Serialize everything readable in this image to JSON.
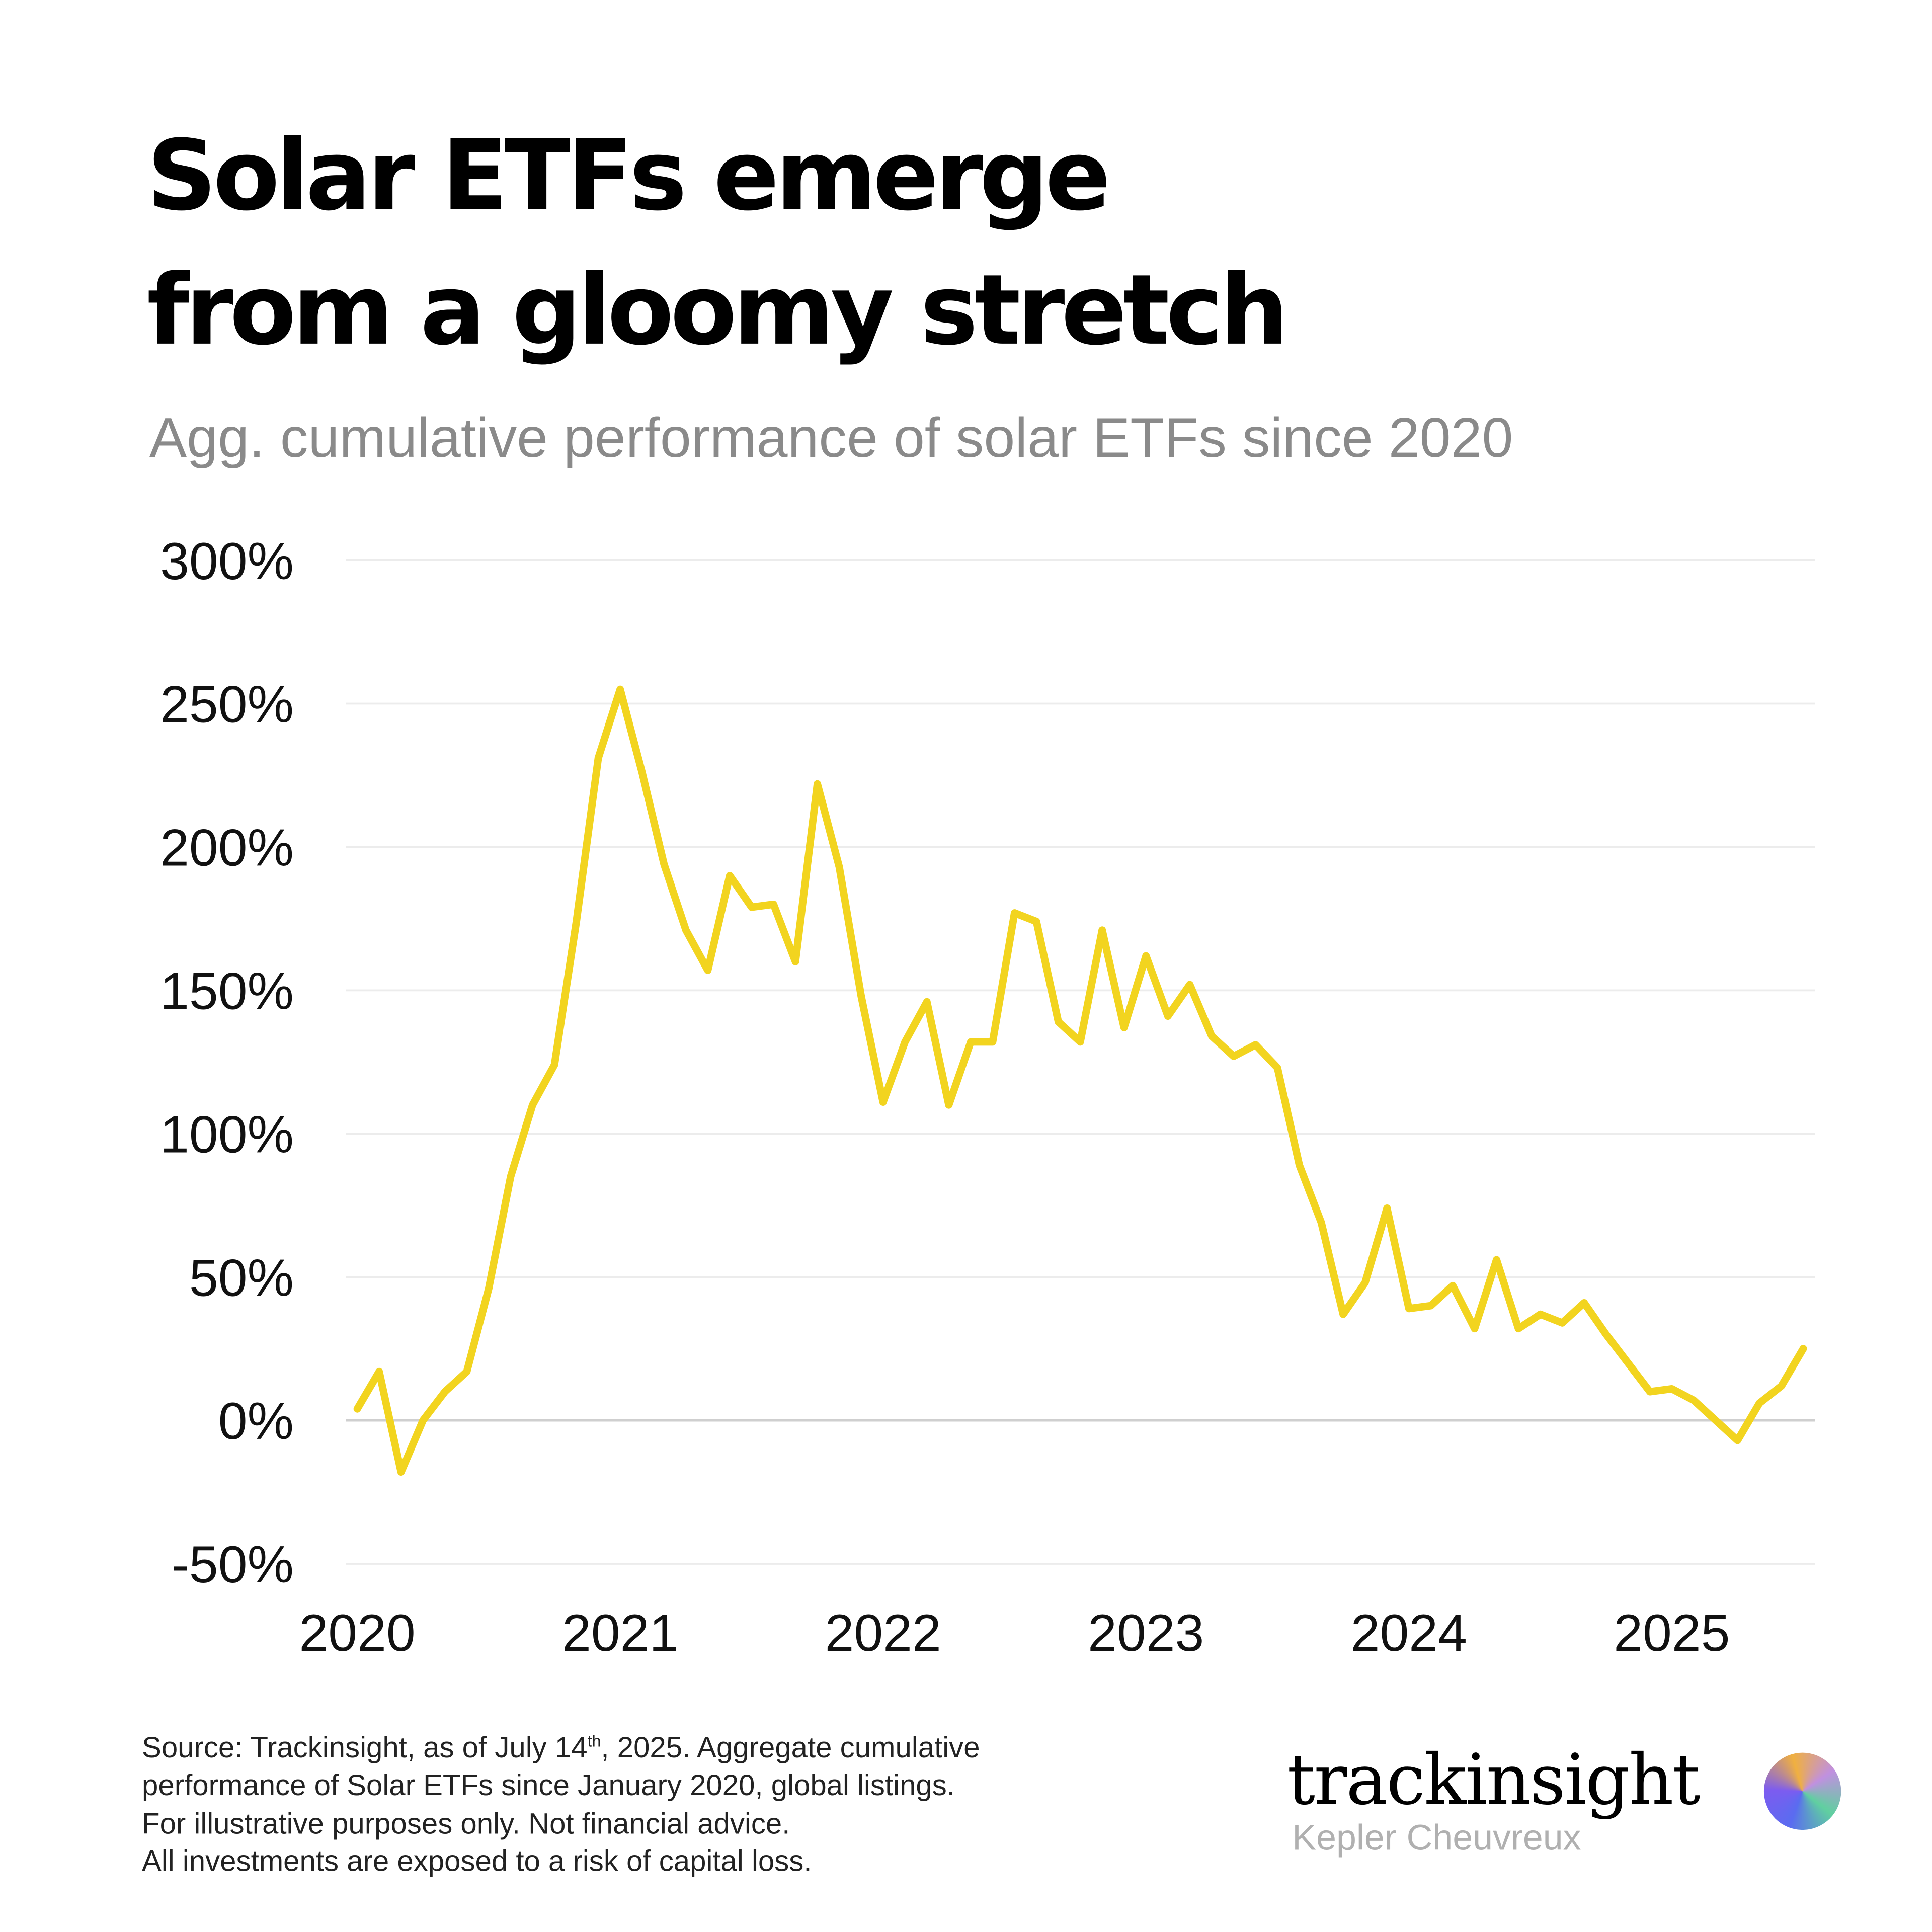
{
  "title_line1": "Solar ETFs emerge",
  "title_line2": "from a gloomy stretch",
  "subtitle": "Agg. cumulative performance of solar ETFs since 2020",
  "footnote": {
    "line1_pre": "Source: Trackinsight, as of July 14",
    "line1_sup": "th",
    "line1_post": ", 2025. Aggregate cumulative",
    "line2": "performance of Solar ETFs since January 2020, global listings.",
    "line3": "For illustrative purposes only. Not financial advice.",
    "line4": "All investments are exposed to a risk of capital loss."
  },
  "logo": {
    "wordmark": "trackinsight",
    "sub": "Kepler Cheuvreux",
    "icon": "gradient-circle-logo"
  },
  "colors": {
    "line": "#f2d41f",
    "grid": "#ececec",
    "zero_line": "#cfcfcf"
  },
  "chart_data": {
    "type": "line",
    "title": "Agg. cumulative performance of solar ETFs since 2020",
    "xlabel": "",
    "ylabel": "",
    "x_ticks": [
      "2020",
      "2021",
      "2022",
      "2023",
      "2024",
      "2025"
    ],
    "y_ticks": [
      "300%",
      "250%",
      "200%",
      "150%",
      "100%",
      "50%",
      "0%",
      "-50%"
    ],
    "y_tick_values": [
      300,
      250,
      200,
      150,
      100,
      50,
      0,
      -50
    ],
    "ylim": [
      -50,
      300
    ],
    "x_start": "2020-01",
    "x_end": "2025-07",
    "x_frequency": "monthly",
    "grid": "horizontal",
    "legend": "none",
    "series": [
      {
        "values": [
          4,
          17,
          -18,
          0,
          10,
          17,
          46,
          85,
          110,
          124,
          174,
          231,
          255,
          226,
          194,
          171,
          157,
          190,
          179,
          180,
          160,
          222,
          193,
          148,
          111,
          132,
          146,
          110,
          132,
          132,
          177,
          174,
          139,
          132,
          171,
          137,
          162,
          141,
          152,
          134,
          127,
          131,
          123,
          89,
          69,
          37,
          48,
          74,
          39,
          40,
          47,
          32,
          56,
          32,
          37,
          34,
          41,
          30,
          20,
          10,
          11,
          7,
          0,
          -7,
          6,
          12,
          25
        ]
      }
    ]
  }
}
